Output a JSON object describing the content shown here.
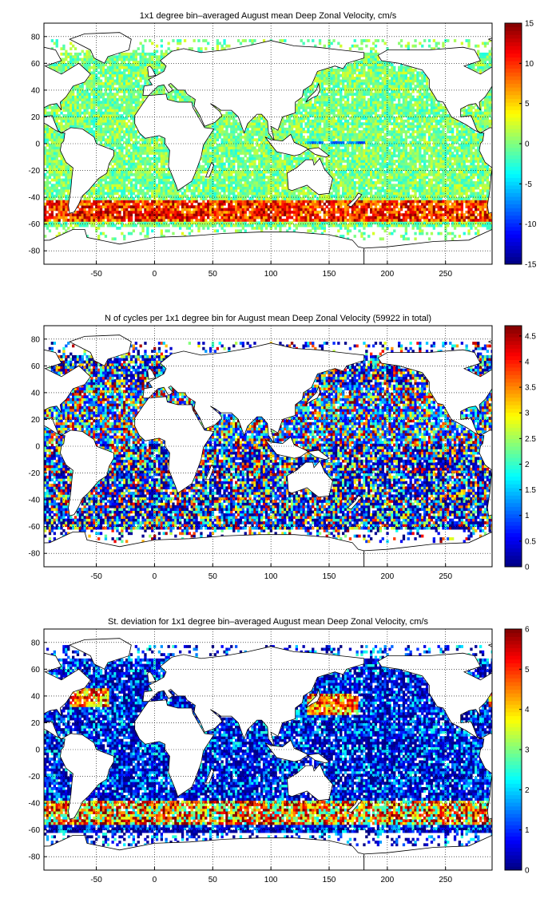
{
  "chart_data": [
    {
      "type": "heatmap",
      "title": "1x1 degree bin–averaged August mean Deep Zonal Velocity, cm/s",
      "xlim": [
        -95,
        290
      ],
      "ylim": [
        -90,
        90
      ],
      "xticks": [
        -50,
        0,
        50,
        100,
        150,
        200,
        250
      ],
      "yticks": [
        80,
        60,
        40,
        20,
        0,
        -20,
        -40,
        -60,
        -80
      ],
      "colorbar": {
        "min": -15,
        "max": 15,
        "ticks": [
          15,
          10,
          5,
          0,
          -5,
          -10,
          -15
        ],
        "colormap": "jet"
      },
      "grid": true,
      "coastlines": true,
      "field": "velocity"
    },
    {
      "type": "heatmap",
      "title": "N of cycles per 1x1 degree bin for August mean Deep Zonal Velocity (59922 in total)",
      "xlim": [
        -95,
        290
      ],
      "ylim": [
        -90,
        90
      ],
      "xticks": [
        -50,
        0,
        50,
        100,
        150,
        200,
        250
      ],
      "yticks": [
        80,
        60,
        40,
        20,
        0,
        -20,
        -40,
        -60,
        -80
      ],
      "colorbar": {
        "min": 0,
        "max": 4.7,
        "ticks": [
          4.5,
          4,
          3.5,
          3,
          2.5,
          2,
          1.5,
          1,
          0.5,
          0
        ],
        "colormap": "jet"
      },
      "grid": true,
      "coastlines": true,
      "field": "count"
    },
    {
      "type": "heatmap",
      "title": "St. deviation for 1x1 degree bin–averaged August mean Deep Zonal Velocity, cm/s",
      "xlim": [
        -95,
        290
      ],
      "ylim": [
        -90,
        90
      ],
      "xticks": [
        -50,
        0,
        50,
        100,
        150,
        200,
        250
      ],
      "yticks": [
        80,
        60,
        40,
        20,
        0,
        -20,
        -40,
        -60,
        -80
      ],
      "colorbar": {
        "min": 0,
        "max": 6,
        "ticks": [
          6,
          5,
          4,
          3,
          2,
          1,
          0
        ],
        "colormap": "jet"
      },
      "grid": true,
      "coastlines": true,
      "field": "stdev"
    }
  ]
}
